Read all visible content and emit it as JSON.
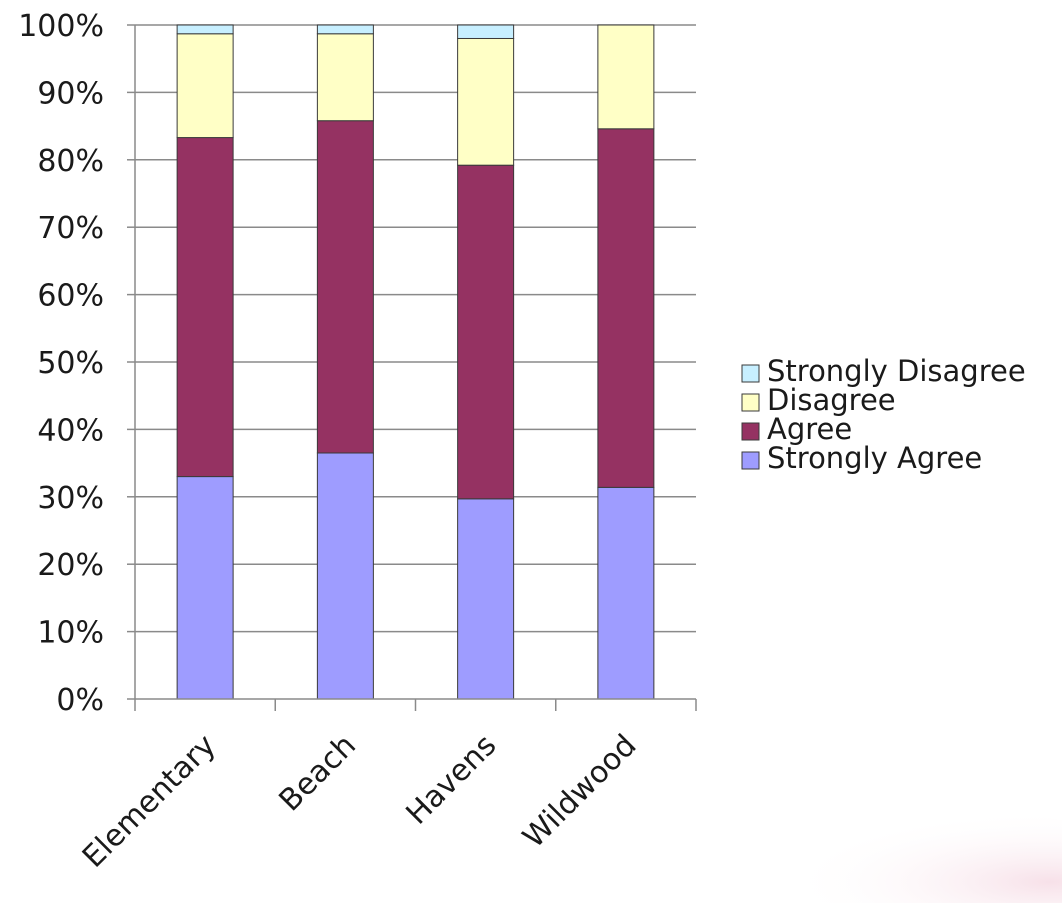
{
  "chart_data": {
    "type": "bar",
    "stacked": true,
    "percent": true,
    "categories": [
      "Elementary",
      "Beach",
      "Havens",
      "Wildwood"
    ],
    "series": [
      {
        "name": "Strongly Agree",
        "color": "#9e9cff",
        "values": [
          33.0,
          36.5,
          29.7,
          31.4
        ]
      },
      {
        "name": "Agree",
        "color": "#953262",
        "values": [
          50.3,
          49.3,
          49.5,
          53.2
        ]
      },
      {
        "name": "Disagree",
        "color": "#ffffc6",
        "values": [
          15.4,
          12.9,
          18.8,
          15.4
        ]
      },
      {
        "name": "Strongly Disagree",
        "color": "#c7efff",
        "values": [
          1.3,
          1.3,
          2.0,
          0.0
        ]
      }
    ],
    "y_tick_labels": [
      "0%",
      "10%",
      "20%",
      "30%",
      "40%",
      "50%",
      "60%",
      "70%",
      "80%",
      "90%",
      "100%"
    ],
    "ylim": [
      0,
      100
    ],
    "grid": true,
    "legend_position": "right",
    "legend_order": [
      "Strongly Disagree",
      "Disagree",
      "Agree",
      "Strongly Agree"
    ],
    "title": "",
    "xlabel": "",
    "ylabel": ""
  }
}
